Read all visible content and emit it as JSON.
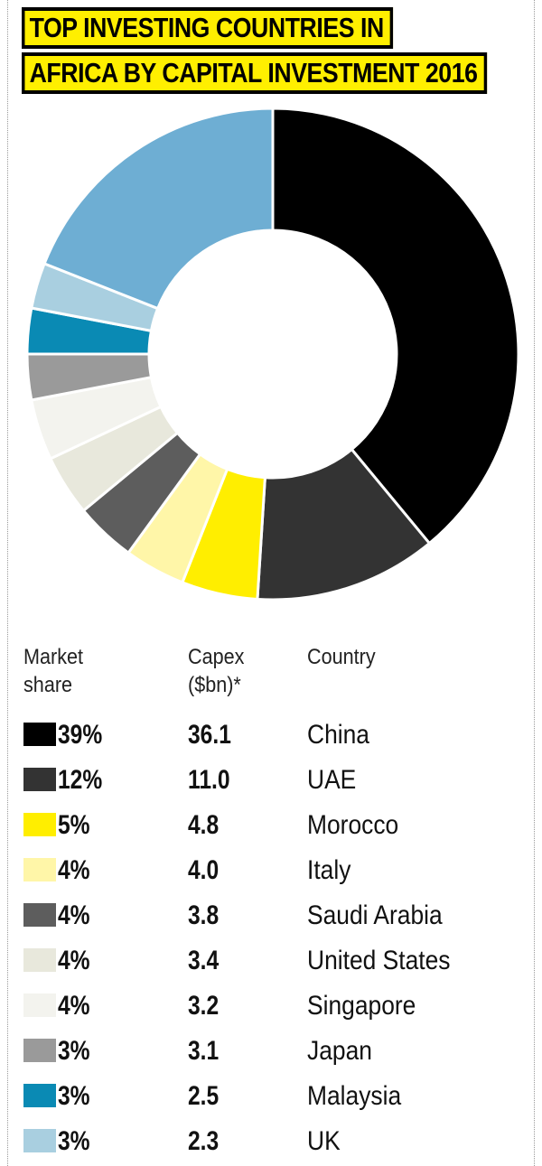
{
  "title": {
    "line1": "TOP INVESTING COUNTRIES IN",
    "line2": "AFRICA BY CAPITAL INVESTMENT 2016"
  },
  "legend_headers": {
    "share": "Market share",
    "share_l1": "Market",
    "share_l2": "share",
    "capex_l1": "Capex",
    "capex_l2": "($bn)*",
    "country": "Country"
  },
  "chart_data": {
    "type": "pie",
    "donut": true,
    "title": "TOP INVESTING COUNTRIES IN AFRICA BY CAPITAL INVESTMENT 2016",
    "categories": [
      "China",
      "UAE",
      "Morocco",
      "Italy",
      "Saudi Arabia",
      "United States",
      "Singapore",
      "Japan",
      "Malaysia",
      "UK",
      ""
    ],
    "rows": [
      {
        "share": "39%",
        "capex": "36.1",
        "country": "China",
        "color": "#000000"
      },
      {
        "share": "12%",
        "capex": "11.0",
        "country": "UAE",
        "color": "#333333"
      },
      {
        "share": "5%",
        "capex": "4.8",
        "country": "Morocco",
        "color": "#ffee00"
      },
      {
        "share": "4%",
        "capex": "4.0",
        "country": "Italy",
        "color": "#fff6a8"
      },
      {
        "share": "4%",
        "capex": "3.8",
        "country": "Saudi Arabia",
        "color": "#5d5d5d"
      },
      {
        "share": "4%",
        "capex": "3.4",
        "country": "United States",
        "color": "#e8e8dc"
      },
      {
        "share": "4%",
        "capex": "3.2",
        "country": "Singapore",
        "color": "#f3f3ee"
      },
      {
        "share": "3%",
        "capex": "3.1",
        "country": "Japan",
        "color": "#9a9a9a"
      },
      {
        "share": "3%",
        "capex": "2.5",
        "country": "Malaysia",
        "color": "#0a8ab4"
      },
      {
        "share": "3%",
        "capex": "2.3",
        "country": "UK",
        "color": "#a9cfe0"
      }
    ],
    "slices": [
      {
        "value": 39,
        "color": "#000000"
      },
      {
        "value": 12,
        "color": "#333333"
      },
      {
        "value": 5,
        "color": "#ffee00"
      },
      {
        "value": 4,
        "color": "#fff6a8"
      },
      {
        "value": 4,
        "color": "#5d5d5d"
      },
      {
        "value": 4,
        "color": "#e8e8dc"
      },
      {
        "value": 4,
        "color": "#f3f3ee"
      },
      {
        "value": 3,
        "color": "#9a9a9a"
      },
      {
        "value": 3,
        "color": "#0a8ab4"
      },
      {
        "value": 3,
        "color": "#a9cfe0"
      },
      {
        "value": 19,
        "color": "#6eaed3"
      }
    ]
  },
  "colors": {
    "title_bg": "#ffef00"
  }
}
